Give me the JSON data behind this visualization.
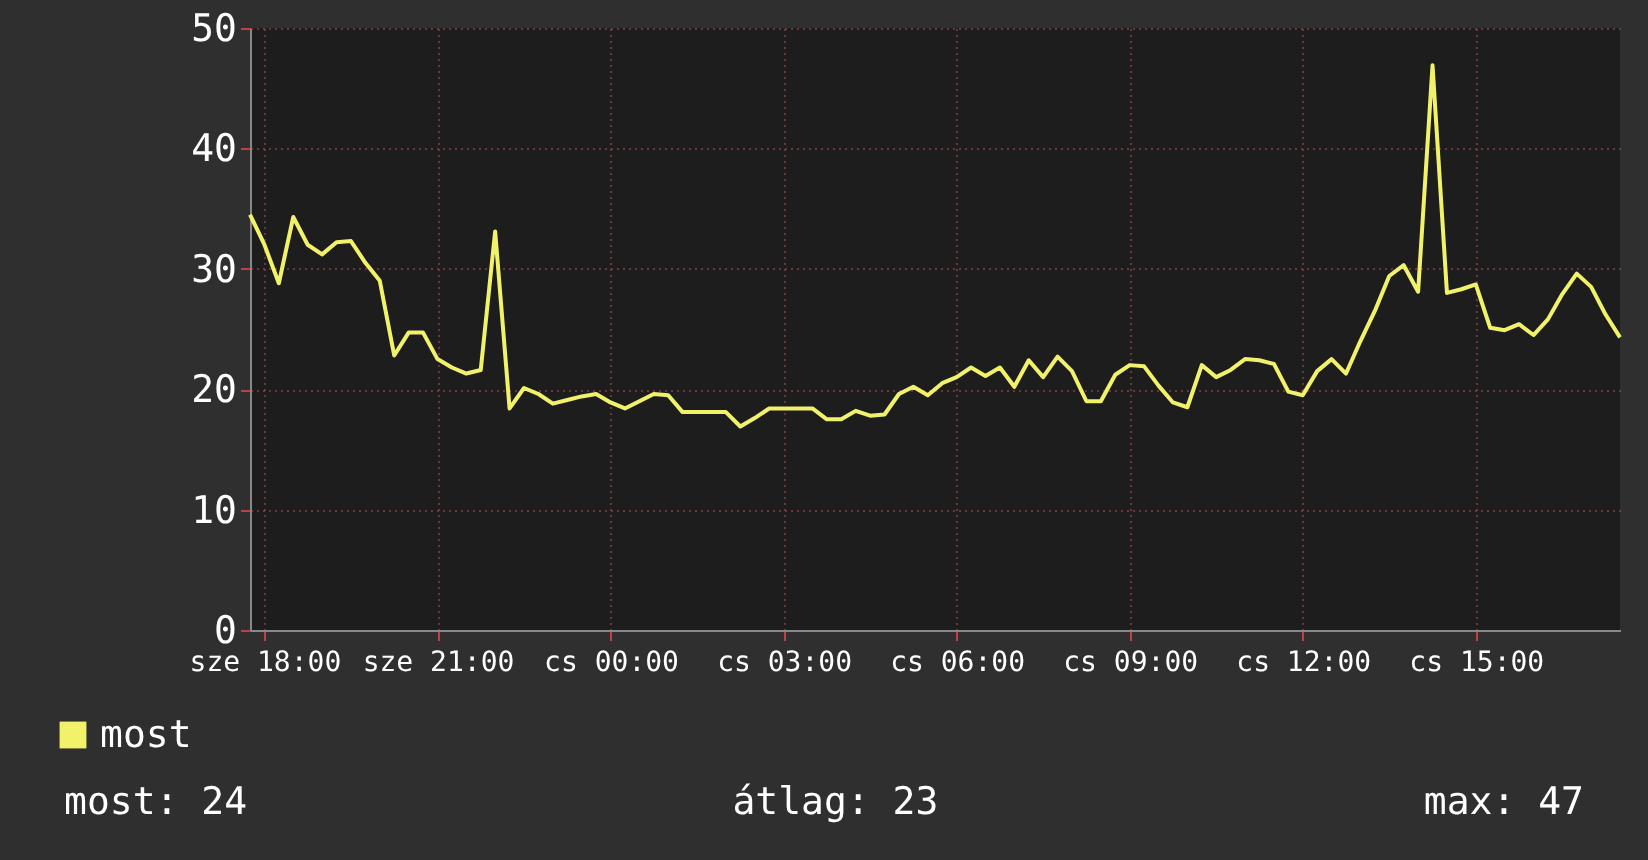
{
  "chart_data": {
    "type": "line",
    "categories": [
      null,
      "sze 18:00",
      null,
      null,
      null,
      null,
      null,
      null,
      null,
      null,
      null,
      null,
      null,
      "sze 21:00",
      null,
      null,
      null,
      null,
      null,
      null,
      null,
      null,
      null,
      null,
      null,
      "cs 00:00",
      null,
      null,
      null,
      null,
      null,
      null,
      null,
      null,
      null,
      null,
      null,
      "cs 03:00",
      null,
      null,
      null,
      null,
      null,
      null,
      null,
      null,
      null,
      null,
      null,
      "cs 06:00",
      null,
      null,
      null,
      null,
      null,
      null,
      null,
      null,
      null,
      null,
      null,
      "cs 09:00",
      null,
      null,
      null,
      null,
      null,
      null,
      null,
      null,
      null,
      null,
      null,
      "cs 12:00",
      null,
      null,
      null,
      null,
      null,
      null,
      null,
      null,
      null,
      null,
      null,
      "cs 15:00",
      null,
      null,
      null,
      null,
      null,
      null,
      null,
      null,
      null,
      null
    ],
    "series": [
      {
        "name": "most",
        "color": "#f2f26a",
        "values": [
          34.5,
          32,
          28.8,
          34.3,
          32,
          31.2,
          32.2,
          32.3,
          30.5,
          29,
          22.8,
          24.7,
          24.7,
          22.5,
          21.8,
          21.3,
          21.6,
          33.1,
          18.4,
          20.1,
          19.6,
          18.8,
          19.1,
          19.4,
          19.6,
          18.9,
          18.4,
          19,
          19.6,
          19.5,
          18.1,
          18.1,
          18.1,
          18.1,
          16.9,
          17.6,
          18.4,
          18.4,
          18.4,
          18.4,
          17.5,
          17.5,
          18.2,
          17.8,
          17.9,
          19.6,
          20.2,
          19.5,
          20.5,
          21,
          21.8,
          21.1,
          21.8,
          20.2,
          22.4,
          21,
          22.7,
          21.5,
          19,
          19,
          21.2,
          22,
          21.9,
          20.3,
          18.9,
          18.5,
          22,
          21,
          21.6,
          22.5,
          22.4,
          22.1,
          19.8,
          19.5,
          21.5,
          22.5,
          21.3,
          24,
          26.5,
          29.4,
          30.3,
          28.1,
          46.9,
          28,
          28.3,
          28.7,
          25.1,
          24.9,
          25.4,
          24.5,
          25.8,
          27.9,
          29.6,
          28.5,
          26.2,
          24.3
        ]
      }
    ],
    "ylim": [
      0,
      50
    ],
    "yticks": [
      0,
      10,
      20,
      30,
      40,
      50
    ],
    "grid": true,
    "legend": "bottom left",
    "annotations": [
      "most: 24",
      "átlag: 23",
      "max: 47"
    ]
  }
}
